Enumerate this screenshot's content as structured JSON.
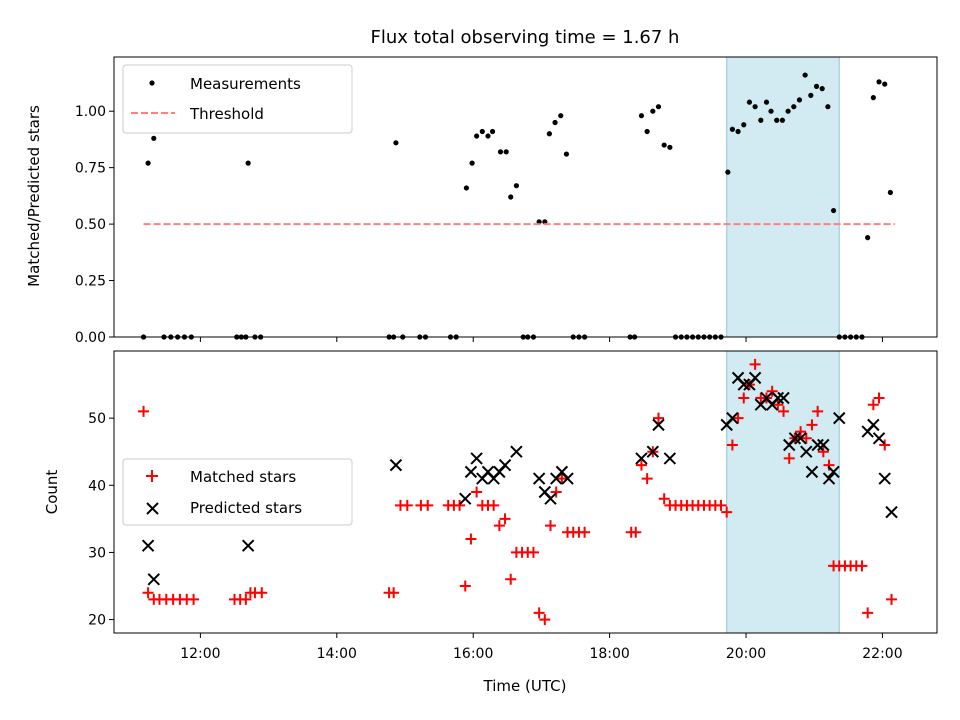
{
  "title": "Flux total observing time = 1.67 h",
  "xlabel": "Time (UTC)",
  "x_ticks": [
    "12:00",
    "14:00",
    "16:00",
    "18:00",
    "20:00",
    "22:00"
  ],
  "highlight": {
    "start": "19:43",
    "end": "21:22",
    "color": "#add8e6"
  },
  "chart_data": [
    {
      "type": "scatter",
      "ylabel": "Matched/Predicted stars",
      "xlim": [
        "10:44",
        "22:48"
      ],
      "ylim": [
        0,
        1.24
      ],
      "y_ticks": [
        "0.00",
        "0.25",
        "0.50",
        "0.75",
        "1.00"
      ],
      "legend": "top-left",
      "series": [
        {
          "name": "Measurements",
          "marker": "dot",
          "color": "#000000",
          "points": [
            [
              "11:10",
              0
            ],
            [
              "11:14",
              0.77
            ],
            [
              "11:19",
              0.88
            ],
            [
              "11:28",
              0
            ],
            [
              "11:34",
              0
            ],
            [
              "11:40",
              0
            ],
            [
              "11:46",
              0
            ],
            [
              "11:52",
              0
            ],
            [
              "12:32",
              0
            ],
            [
              "12:36",
              0
            ],
            [
              "12:40",
              0
            ],
            [
              "12:42",
              0.77
            ],
            [
              "12:48",
              0
            ],
            [
              "12:53",
              0
            ],
            [
              "14:46",
              0
            ],
            [
              "14:50",
              0
            ],
            [
              "14:52",
              0.86
            ],
            [
              "14:58",
              0
            ],
            [
              "15:13",
              0
            ],
            [
              "15:18",
              0
            ],
            [
              "15:40",
              0
            ],
            [
              "15:45",
              0
            ],
            [
              "15:54",
              0.66
            ],
            [
              "15:59",
              0.77
            ],
            [
              "16:03",
              0.89
            ],
            [
              "16:08",
              0.91
            ],
            [
              "16:13",
              0.89
            ],
            [
              "16:17",
              0.91
            ],
            [
              "16:24",
              0.82
            ],
            [
              "16:29",
              0.82
            ],
            [
              "16:33",
              0.62
            ],
            [
              "16:38",
              0.67
            ],
            [
              "16:44",
              0
            ],
            [
              "16:48",
              0
            ],
            [
              "16:53",
              0
            ],
            [
              "16:58",
              0.51
            ],
            [
              "17:03",
              0.51
            ],
            [
              "17:07",
              0.9
            ],
            [
              "17:12",
              0.95
            ],
            [
              "17:17",
              0.98
            ],
            [
              "17:22",
              0.81
            ],
            [
              "17:28",
              0
            ],
            [
              "17:33",
              0
            ],
            [
              "17:38",
              0
            ],
            [
              "18:18",
              0
            ],
            [
              "18:22",
              0
            ],
            [
              "18:28",
              0.98
            ],
            [
              "18:33",
              0.91
            ],
            [
              "18:38",
              1.0
            ],
            [
              "18:43",
              1.02
            ],
            [
              "18:48",
              0.85
            ],
            [
              "18:53",
              0.84
            ],
            [
              "18:58",
              0
            ],
            [
              "19:03",
              0
            ],
            [
              "19:08",
              0
            ],
            [
              "19:13",
              0
            ],
            [
              "19:18",
              0
            ],
            [
              "19:23",
              0
            ],
            [
              "19:28",
              0
            ],
            [
              "19:33",
              0
            ],
            [
              "19:38",
              0
            ],
            [
              "19:44",
              0.73
            ],
            [
              "19:48",
              0.92
            ],
            [
              "19:53",
              0.91
            ],
            [
              "19:58",
              0.94
            ],
            [
              "20:03",
              1.04
            ],
            [
              "20:08",
              1.02
            ],
            [
              "20:13",
              0.96
            ],
            [
              "20:18",
              1.04
            ],
            [
              "20:22",
              1.0
            ],
            [
              "20:27",
              0.96
            ],
            [
              "20:32",
              0.96
            ],
            [
              "20:37",
              1.0
            ],
            [
              "20:42",
              1.02
            ],
            [
              "20:47",
              1.05
            ],
            [
              "20:52",
              1.16
            ],
            [
              "20:57",
              1.07
            ],
            [
              "21:02",
              1.11
            ],
            [
              "21:07",
              1.1
            ],
            [
              "21:12",
              1.02
            ],
            [
              "21:17",
              0.56
            ],
            [
              "21:22",
              0
            ],
            [
              "21:27",
              0
            ],
            [
              "21:32",
              0
            ],
            [
              "21:37",
              0
            ],
            [
              "21:42",
              0
            ],
            [
              "21:47",
              0.44
            ],
            [
              "21:52",
              1.06
            ],
            [
              "21:57",
              1.13
            ],
            [
              "22:02",
              1.12
            ],
            [
              "22:07",
              0.64
            ]
          ]
        },
        {
          "name": "Threshold",
          "marker": "dashed-line",
          "color": "#ff8080",
          "points": [
            [
              "11:10",
              0.5
            ],
            [
              "22:11",
              0.5
            ]
          ]
        }
      ]
    },
    {
      "type": "scatter",
      "ylabel": "Count",
      "xlim": [
        "10:44",
        "22:48"
      ],
      "ylim": [
        18,
        60
      ],
      "y_ticks": [
        "20",
        "30",
        "40",
        "50"
      ],
      "legend": "center-left",
      "series": [
        {
          "name": "Matched stars",
          "marker": "plus",
          "color": "#ff0000",
          "points": [
            [
              "11:10",
              51
            ],
            [
              "11:14",
              24
            ],
            [
              "11:19",
              23
            ],
            [
              "11:24",
              23
            ],
            [
              "11:30",
              23
            ],
            [
              "11:36",
              23
            ],
            [
              "11:42",
              23
            ],
            [
              "11:48",
              23
            ],
            [
              "11:54",
              23
            ],
            [
              "12:30",
              23
            ],
            [
              "12:35",
              23
            ],
            [
              "12:40",
              23
            ],
            [
              "12:44",
              24
            ],
            [
              "12:48",
              24
            ],
            [
              "12:54",
              24
            ],
            [
              "14:46",
              24
            ],
            [
              "14:50",
              24
            ],
            [
              "14:56",
              37
            ],
            [
              "15:02",
              37
            ],
            [
              "15:14",
              37
            ],
            [
              "15:20",
              37
            ],
            [
              "15:38",
              37
            ],
            [
              "15:43",
              37
            ],
            [
              "15:48",
              37
            ],
            [
              "15:53",
              25
            ],
            [
              "15:58",
              32
            ],
            [
              "16:03",
              39
            ],
            [
              "16:08",
              37
            ],
            [
              "16:13",
              37
            ],
            [
              "16:18",
              37
            ],
            [
              "16:23",
              34
            ],
            [
              "16:28",
              35
            ],
            [
              "16:33",
              26
            ],
            [
              "16:38",
              30
            ],
            [
              "16:43",
              30
            ],
            [
              "16:48",
              30
            ],
            [
              "16:53",
              30
            ],
            [
              "16:58",
              21
            ],
            [
              "17:03",
              20
            ],
            [
              "17:08",
              34
            ],
            [
              "17:13",
              39
            ],
            [
              "17:18",
              41
            ],
            [
              "17:23",
              33
            ],
            [
              "17:28",
              33
            ],
            [
              "17:33",
              33
            ],
            [
              "17:38",
              33
            ],
            [
              "18:19",
              33
            ],
            [
              "18:23",
              33
            ],
            [
              "18:28",
              43
            ],
            [
              "18:33",
              41
            ],
            [
              "18:38",
              45
            ],
            [
              "18:43",
              50
            ],
            [
              "18:48",
              38
            ],
            [
              "18:53",
              37
            ],
            [
              "18:58",
              37
            ],
            [
              "19:03",
              37
            ],
            [
              "19:08",
              37
            ],
            [
              "19:13",
              37
            ],
            [
              "19:18",
              37
            ],
            [
              "19:23",
              37
            ],
            [
              "19:28",
              37
            ],
            [
              "19:33",
              37
            ],
            [
              "19:38",
              37
            ],
            [
              "19:43",
              36
            ],
            [
              "19:48",
              46
            ],
            [
              "19:53",
              50
            ],
            [
              "19:58",
              53
            ],
            [
              "20:03",
              55
            ],
            [
              "20:08",
              58
            ],
            [
              "20:13",
              53
            ],
            [
              "20:18",
              53
            ],
            [
              "20:23",
              54
            ],
            [
              "20:28",
              52
            ],
            [
              "20:33",
              51
            ],
            [
              "20:38",
              44
            ],
            [
              "20:43",
              47
            ],
            [
              "20:48",
              48
            ],
            [
              "20:53",
              47
            ],
            [
              "20:58",
              49
            ],
            [
              "21:03",
              51
            ],
            [
              "21:08",
              45
            ],
            [
              "21:13",
              43
            ],
            [
              "21:17",
              28
            ],
            [
              "21:22",
              28
            ],
            [
              "21:27",
              28
            ],
            [
              "21:32",
              28
            ],
            [
              "21:37",
              28
            ],
            [
              "21:42",
              28
            ],
            [
              "21:47",
              21
            ],
            [
              "21:52",
              52
            ],
            [
              "21:57",
              53
            ],
            [
              "22:02",
              46
            ],
            [
              "22:08",
              23
            ]
          ]
        },
        {
          "name": "Predicted stars",
          "marker": "x",
          "color": "#000000",
          "points": [
            [
              "11:14",
              31
            ],
            [
              "11:19",
              26
            ],
            [
              "12:42",
              31
            ],
            [
              "14:52",
              43
            ],
            [
              "15:53",
              38
            ],
            [
              "15:58",
              42
            ],
            [
              "16:03",
              44
            ],
            [
              "16:08",
              41
            ],
            [
              "16:13",
              42
            ],
            [
              "16:18",
              41
            ],
            [
              "16:23",
              42
            ],
            [
              "16:28",
              43
            ],
            [
              "16:38",
              45
            ],
            [
              "16:58",
              41
            ],
            [
              "17:03",
              39
            ],
            [
              "17:08",
              38
            ],
            [
              "17:13",
              41
            ],
            [
              "17:18",
              42
            ],
            [
              "17:23",
              41
            ],
            [
              "18:28",
              44
            ],
            [
              "18:38",
              45
            ],
            [
              "18:43",
              49
            ],
            [
              "18:53",
              44
            ],
            [
              "19:43",
              49
            ],
            [
              "19:48",
              50
            ],
            [
              "19:53",
              56
            ],
            [
              "19:58",
              55
            ],
            [
              "20:03",
              55
            ],
            [
              "20:08",
              56
            ],
            [
              "20:13",
              52
            ],
            [
              "20:18",
              53
            ],
            [
              "20:23",
              52
            ],
            [
              "20:28",
              53
            ],
            [
              "20:33",
              53
            ],
            [
              "20:38",
              46
            ],
            [
              "20:43",
              47
            ],
            [
              "20:48",
              47
            ],
            [
              "20:53",
              45
            ],
            [
              "20:58",
              42
            ],
            [
              "21:03",
              46
            ],
            [
              "21:08",
              46
            ],
            [
              "21:13",
              41
            ],
            [
              "21:17",
              42
            ],
            [
              "21:22",
              50
            ],
            [
              "21:47",
              48
            ],
            [
              "21:52",
              49
            ],
            [
              "21:57",
              47
            ],
            [
              "22:02",
              41
            ],
            [
              "22:08",
              36
            ]
          ]
        }
      ]
    }
  ]
}
